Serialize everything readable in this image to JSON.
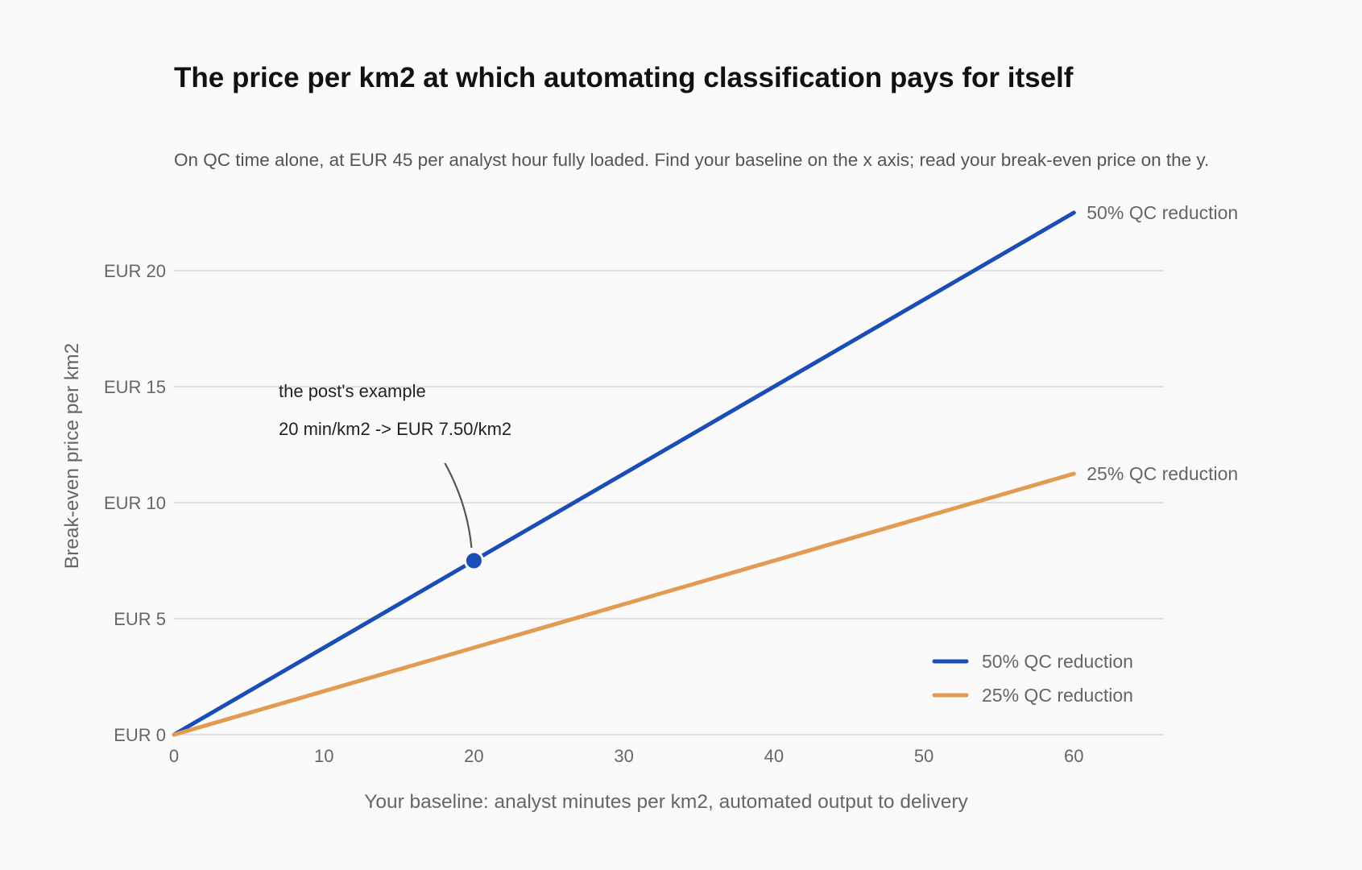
{
  "chart_data": {
    "type": "line",
    "title": "The price per km2 at which automating classification pays for itself",
    "subtitle": "On QC time alone, at EUR 45 per analyst hour fully loaded. Find your baseline on the x axis; read your break-even price on the y.",
    "xlabel": "Your baseline: analyst minutes per km2, automated output to delivery",
    "ylabel": "Break-even price per km2",
    "xlim": [
      0,
      66
    ],
    "ylim": [
      0,
      20
    ],
    "x_ticks": [
      0,
      10,
      20,
      30,
      40,
      50,
      60
    ],
    "x_tick_labels": [
      "0",
      "10",
      "20",
      "30",
      "40",
      "50",
      "60"
    ],
    "y_ticks": [
      0,
      5,
      10,
      15,
      20
    ],
    "y_tick_labels": [
      "EUR 0",
      "EUR 5",
      "EUR 10",
      "EUR 15",
      "EUR 20"
    ],
    "grid": "horizontal",
    "legend_position": "bottom-right",
    "series": [
      {
        "name": "50% QC reduction",
        "color": "#1a4db5",
        "x": [
          0,
          60
        ],
        "y": [
          0,
          22.5
        ]
      },
      {
        "name": "25% QC reduction",
        "color": "#e39a53",
        "x": [
          0,
          60
        ],
        "y": [
          0,
          11.25
        ]
      }
    ],
    "highlight_point": {
      "x": 20,
      "y": 7.5,
      "color": "#1a4db5"
    },
    "annotation": {
      "line1": "the post's example",
      "line2": "20 min/km2  ->  EUR 7.50/km2"
    }
  }
}
